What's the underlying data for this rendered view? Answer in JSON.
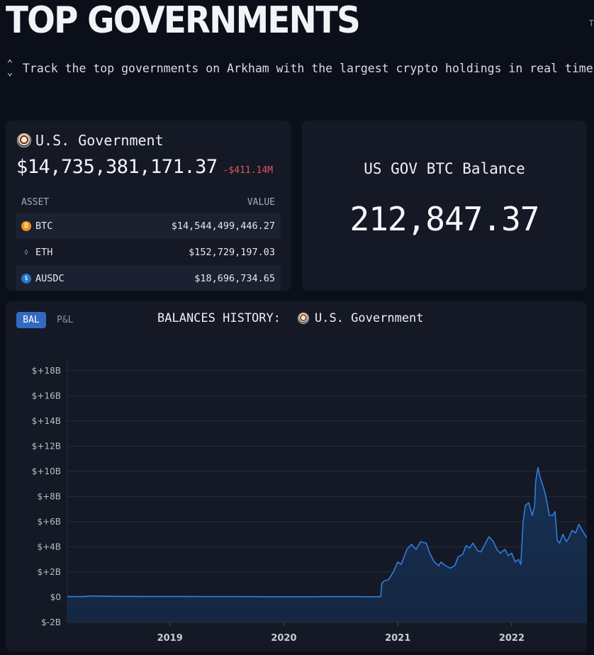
{
  "header": {
    "title": "TOP GOVERNMENTS",
    "edge_mark": "T",
    "subtitle": "Track the top governments on Arkham with the largest crypto holdings in real time"
  },
  "gov_card": {
    "name": "U.S. Government",
    "total": "$14,735,381,171.37",
    "change": "-$411.14M",
    "change_color": "#e0565b",
    "columns": [
      "ASSET",
      "VALUE"
    ],
    "assets": [
      {
        "symbol": "BTC",
        "value": "$14,544,499,446.27",
        "icon": "btc-icon"
      },
      {
        "symbol": "ETH",
        "value": "$152,729,197.03",
        "icon": "eth-icon"
      },
      {
        "symbol": "AUSDC",
        "value": "$18,696,734.65",
        "icon": "usdc-icon"
      }
    ]
  },
  "btc_card": {
    "label": "US GOV BTC Balance",
    "value": "212,847.37"
  },
  "chart_panel": {
    "tabs": [
      "BAL",
      "P&L"
    ],
    "active_tab": "BAL",
    "title": "BALANCES HISTORY:",
    "entity": "U.S. Government"
  },
  "chart_data": {
    "type": "area",
    "title": "BALANCES HISTORY: U.S. Government",
    "xlabel": "",
    "ylabel": "",
    "y_ticks": [
      "$+18B",
      "$+16B",
      "$+14B",
      "$+12B",
      "$+10B",
      "$+8B",
      "$+6B",
      "$+4B",
      "$+2B",
      "$0",
      "$-2B"
    ],
    "x_ticks": [
      "2019",
      "2020",
      "2021",
      "2022"
    ],
    "ylim": [
      -2,
      19
    ],
    "xlim": [
      2018.1,
      2022.66
    ],
    "grid": true,
    "line_color": "#2f7de1",
    "fill_color": "#163258",
    "series": [
      {
        "units": "billions USD",
        "x": [
          2018.1,
          2018.25,
          2018.3,
          2018.5,
          2018.75,
          2019.0,
          2019.3,
          2019.6,
          2019.9,
          2020.2,
          2020.5,
          2020.8,
          2020.85,
          2020.86,
          2020.88,
          2020.92,
          2020.96,
          2021.0,
          2021.03,
          2021.08,
          2021.12,
          2021.16,
          2021.2,
          2021.25,
          2021.28,
          2021.32,
          2021.36,
          2021.38,
          2021.42,
          2021.46,
          2021.5,
          2021.53,
          2021.57,
          2021.6,
          2021.63,
          2021.66,
          2021.7,
          2021.73,
          2021.77,
          2021.8,
          2021.84,
          2021.87,
          2021.9,
          2021.94,
          2021.97,
          2022.0,
          2022.03,
          2022.06,
          2022.08,
          2022.1,
          2022.12,
          2022.15,
          2022.18,
          2022.2,
          2022.21,
          2022.23,
          2022.25,
          2022.28,
          2022.3,
          2022.33,
          2022.36,
          2022.38,
          2022.4,
          2022.42,
          2022.45,
          2022.48,
          2022.5,
          2022.53,
          2022.56,
          2022.59,
          2022.62,
          2022.64,
          2022.66
        ],
        "values": [
          0.05,
          0.05,
          0.1,
          0.07,
          0.06,
          0.06,
          0.05,
          0.05,
          0.04,
          0.04,
          0.05,
          0.04,
          0.05,
          1.1,
          1.3,
          1.4,
          2.0,
          2.8,
          2.6,
          3.8,
          4.2,
          3.8,
          4.4,
          4.3,
          3.5,
          2.8,
          2.5,
          2.8,
          2.5,
          2.3,
          2.5,
          3.2,
          3.4,
          4.1,
          3.9,
          4.3,
          3.7,
          3.6,
          4.3,
          4.8,
          4.4,
          3.8,
          3.5,
          3.8,
          3.3,
          3.5,
          2.8,
          3.0,
          2.6,
          6.0,
          7.3,
          7.5,
          6.5,
          7.2,
          9.2,
          10.3,
          9.5,
          8.7,
          8.0,
          6.5,
          6.5,
          6.8,
          4.5,
          4.3,
          5.0,
          4.4,
          4.7,
          5.3,
          5.1,
          5.8,
          5.3,
          5.0,
          4.7
        ]
      }
    ]
  }
}
